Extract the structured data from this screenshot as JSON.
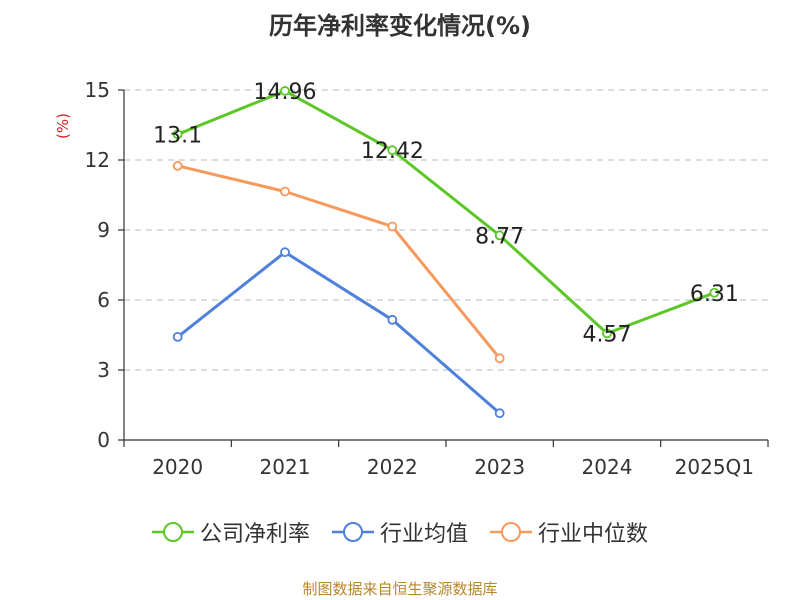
{
  "chart_data": {
    "type": "line",
    "title": "历年净利率变化情况(%)",
    "ylabel": "(%)",
    "categories": [
      "2020",
      "2021",
      "2022",
      "2023",
      "2024",
      "2025Q1"
    ],
    "ylim": [
      0,
      15
    ],
    "yticks": [
      0,
      3,
      6,
      9,
      12,
      15
    ],
    "grid": true,
    "legend_position": "bottom",
    "series": [
      {
        "name": "公司净利率",
        "color": "#5cc726",
        "values": [
          13.1,
          14.96,
          12.42,
          8.77,
          4.57,
          6.31
        ],
        "show_labels": true
      },
      {
        "name": "行业均值",
        "color": "#4f81db",
        "values": [
          4.42,
          8.05,
          5.15,
          1.15,
          null,
          null
        ],
        "show_labels": false
      },
      {
        "name": "行业中位数",
        "color": "#f59a5c",
        "values": [
          11.75,
          10.65,
          9.15,
          3.5,
          null,
          null
        ],
        "show_labels": false
      }
    ]
  },
  "source": "制图数据来自恒生聚源数据库"
}
